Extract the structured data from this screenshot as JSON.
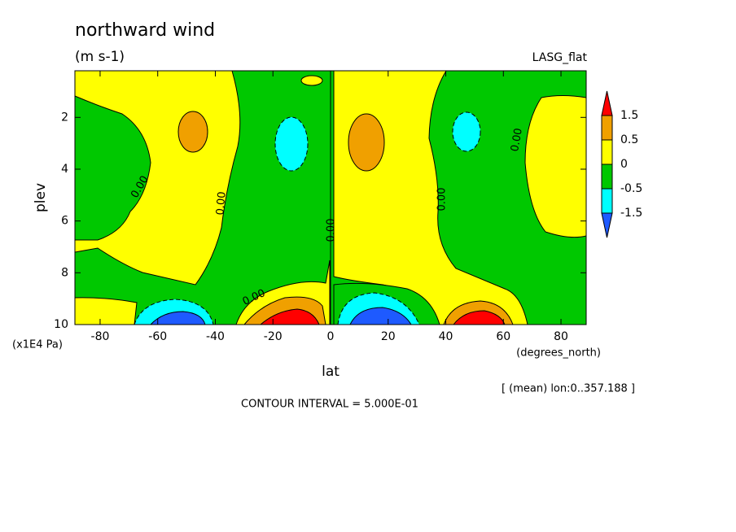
{
  "chart_data": {
    "type": "contour",
    "title": "northward wind",
    "subtitle": "(m s-1)",
    "dataset": "LASG_flat",
    "xlabel": "lat",
    "ylabel": "plev",
    "x_units": "(degrees_north)",
    "y_units": "(x1E4 Pa)",
    "region_note": "[ (mean) lon:0..357.188 ]",
    "contour_interval": "CONTOUR INTERVAL = 5.000E-01",
    "xlim": [
      -88.75,
      88.75
    ],
    "ylim": [
      10,
      0.2
    ],
    "xticks": [
      -80,
      -60,
      -40,
      -20,
      0,
      20,
      40,
      60,
      80
    ],
    "yticks": [
      2,
      4,
      6,
      8,
      10
    ],
    "colorbar_levels": [
      1.5,
      0.5,
      0,
      -0.5,
      -1.5
    ],
    "colors": [
      "#1e5aff",
      "#00ffff",
      "#00c800",
      "#ffff00",
      "#f0a000",
      "#ff0000"
    ],
    "contour_labels": [
      "0.00",
      "0.00",
      "0.00",
      "0.00",
      "0.00",
      "0.00"
    ]
  }
}
